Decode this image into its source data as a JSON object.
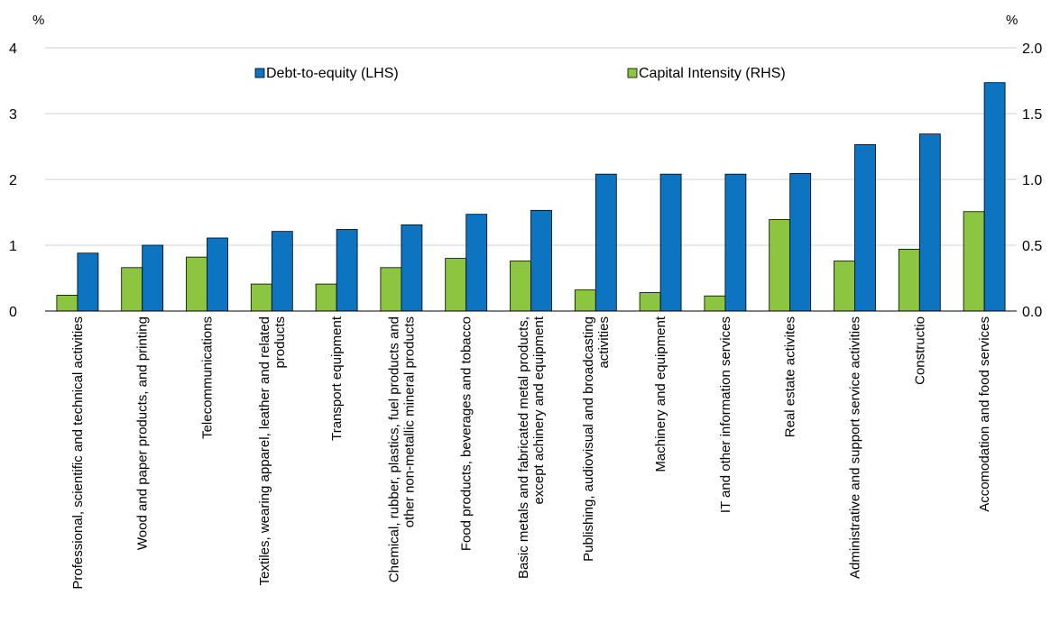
{
  "chart_data": {
    "type": "bar",
    "left_axis": {
      "unit": "%",
      "range": [
        0,
        4
      ],
      "ticks": [
        "0",
        "1",
        "2",
        "3",
        "4"
      ]
    },
    "right_axis": {
      "unit": "%",
      "range": [
        0,
        2
      ],
      "ticks": [
        "0.0",
        "0.5",
        "1.0",
        "1.5",
        "2.0"
      ]
    },
    "grid": true,
    "legend_position": "top",
    "categories": [
      [
        "Professional, scientific and technical activities"
      ],
      [
        "Wood and paper products, and printing"
      ],
      [
        "Telecommunications"
      ],
      [
        "Textiles, wearing apparel, leather and related",
        "products"
      ],
      [
        "Transport equipment"
      ],
      [
        "Chemical, rubber, plastics, fuel products and",
        "other non-metallic mineral products"
      ],
      [
        "Food products, beverages and tobacco"
      ],
      [
        "Basic metals and fabricated metal products,",
        "except achinery and equipment"
      ],
      [
        "Publishing, audiovisual and broadcasting",
        "activities"
      ],
      [
        "Machinery and equipment"
      ],
      [
        "IT and other information services"
      ],
      [
        "Real estate activites"
      ],
      [
        "Administrative and support service activities"
      ],
      [
        "Constructio"
      ],
      [
        "Accomodation and food services"
      ]
    ],
    "series": [
      {
        "name": "Capital Intensity (RHS)",
        "axis": "right",
        "color": "#8cc641",
        "values": [
          0.12,
          0.33,
          0.41,
          0.205,
          0.205,
          0.33,
          0.4,
          0.38,
          0.16,
          0.14,
          0.115,
          0.695,
          0.38,
          0.47,
          0.755
        ]
      },
      {
        "name": "Debt-to-equity (LHS)",
        "axis": "left",
        "color": "#0c74c1",
        "values": [
          0.88,
          1.0,
          1.11,
          1.21,
          1.24,
          1.31,
          1.47,
          1.53,
          2.08,
          2.08,
          2.08,
          2.09,
          2.53,
          2.69,
          3.47
        ]
      }
    ]
  }
}
